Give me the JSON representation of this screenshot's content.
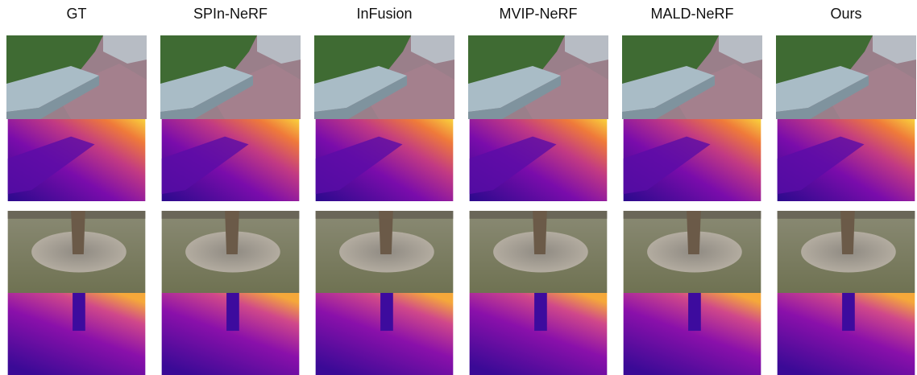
{
  "columns": [
    "GT",
    "SPIn-NeRF",
    "InFusion",
    "MVIP-NeRF",
    "MALD-NeRF",
    "Ours"
  ]
}
